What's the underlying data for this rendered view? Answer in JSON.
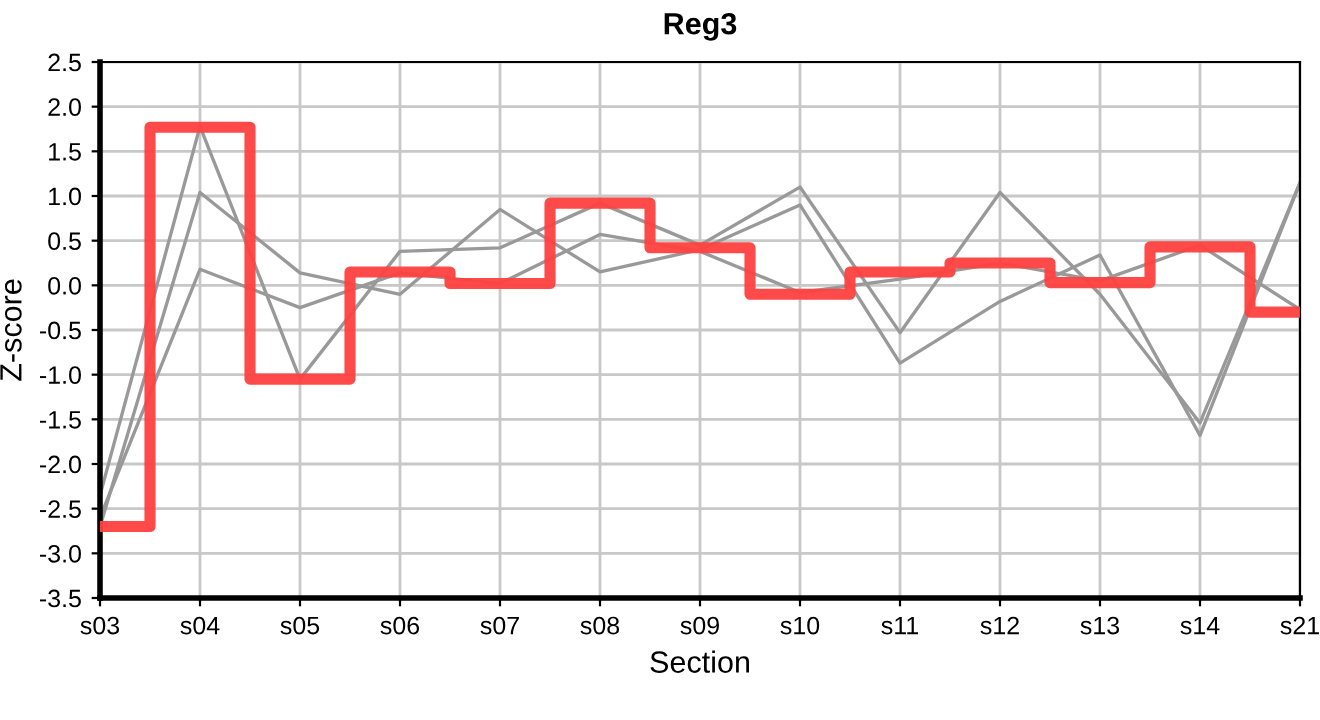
{
  "chart_data": {
    "type": "line",
    "title": "Reg3",
    "xlabel": "Section",
    "ylabel": "Z-score",
    "categories": [
      "s03",
      "s04",
      "s05",
      "s06",
      "s07",
      "s08",
      "s09",
      "s10",
      "s11",
      "s12",
      "s13",
      "s14",
      "s21"
    ],
    "series": [
      {
        "color": "#999999",
        "values": [
          -2.35,
          1.78,
          -1.05,
          0.38,
          0.42,
          0.92,
          0.45,
          1.1,
          -0.53,
          1.04,
          -0.1,
          -1.54,
          1.15
        ]
      },
      {
        "color": "#999999",
        "values": [
          -2.7,
          1.04,
          0.14,
          -0.1,
          0.85,
          0.15,
          0.4,
          0.9,
          -0.87,
          -0.18,
          0.34,
          -1.68,
          1.15
        ]
      },
      {
        "color": "#999999",
        "values": [
          -2.6,
          0.18,
          -0.25,
          0.14,
          0.02,
          0.57,
          0.38,
          -0.08,
          0.07,
          0.25,
          0.05,
          0.45,
          -0.27
        ]
      },
      {
        "type": "step",
        "color": "#ff4040",
        "values": [
          -2.7,
          1.77,
          -1.05,
          0.15,
          0.02,
          0.92,
          0.42,
          -0.1,
          0.15,
          0.25,
          0.03,
          0.43,
          -0.3
        ]
      }
    ],
    "ylim": [
      -3.5,
      2.5
    ],
    "yticks": [
      {
        "value": -3.5,
        "label": "-3.5"
      },
      {
        "value": -3.0,
        "label": "-3.0"
      },
      {
        "value": -2.5,
        "label": "-2.5"
      },
      {
        "value": -2.0,
        "label": "-2.0"
      },
      {
        "value": -1.5,
        "label": "-1.5"
      },
      {
        "value": -1.0,
        "label": "-1.0"
      },
      {
        "value": -0.5,
        "label": "-0.5"
      },
      {
        "value": 0,
        "label": "0.0"
      },
      {
        "value": 0.5,
        "label": "0.5"
      },
      {
        "value": 1.0,
        "label": "1.0"
      },
      {
        "value": 1.5,
        "label": "1.5"
      },
      {
        "value": 2.0,
        "label": "2.0"
      },
      {
        "value": 2.5,
        "label": "2.5"
      }
    ],
    "grid": true
  }
}
